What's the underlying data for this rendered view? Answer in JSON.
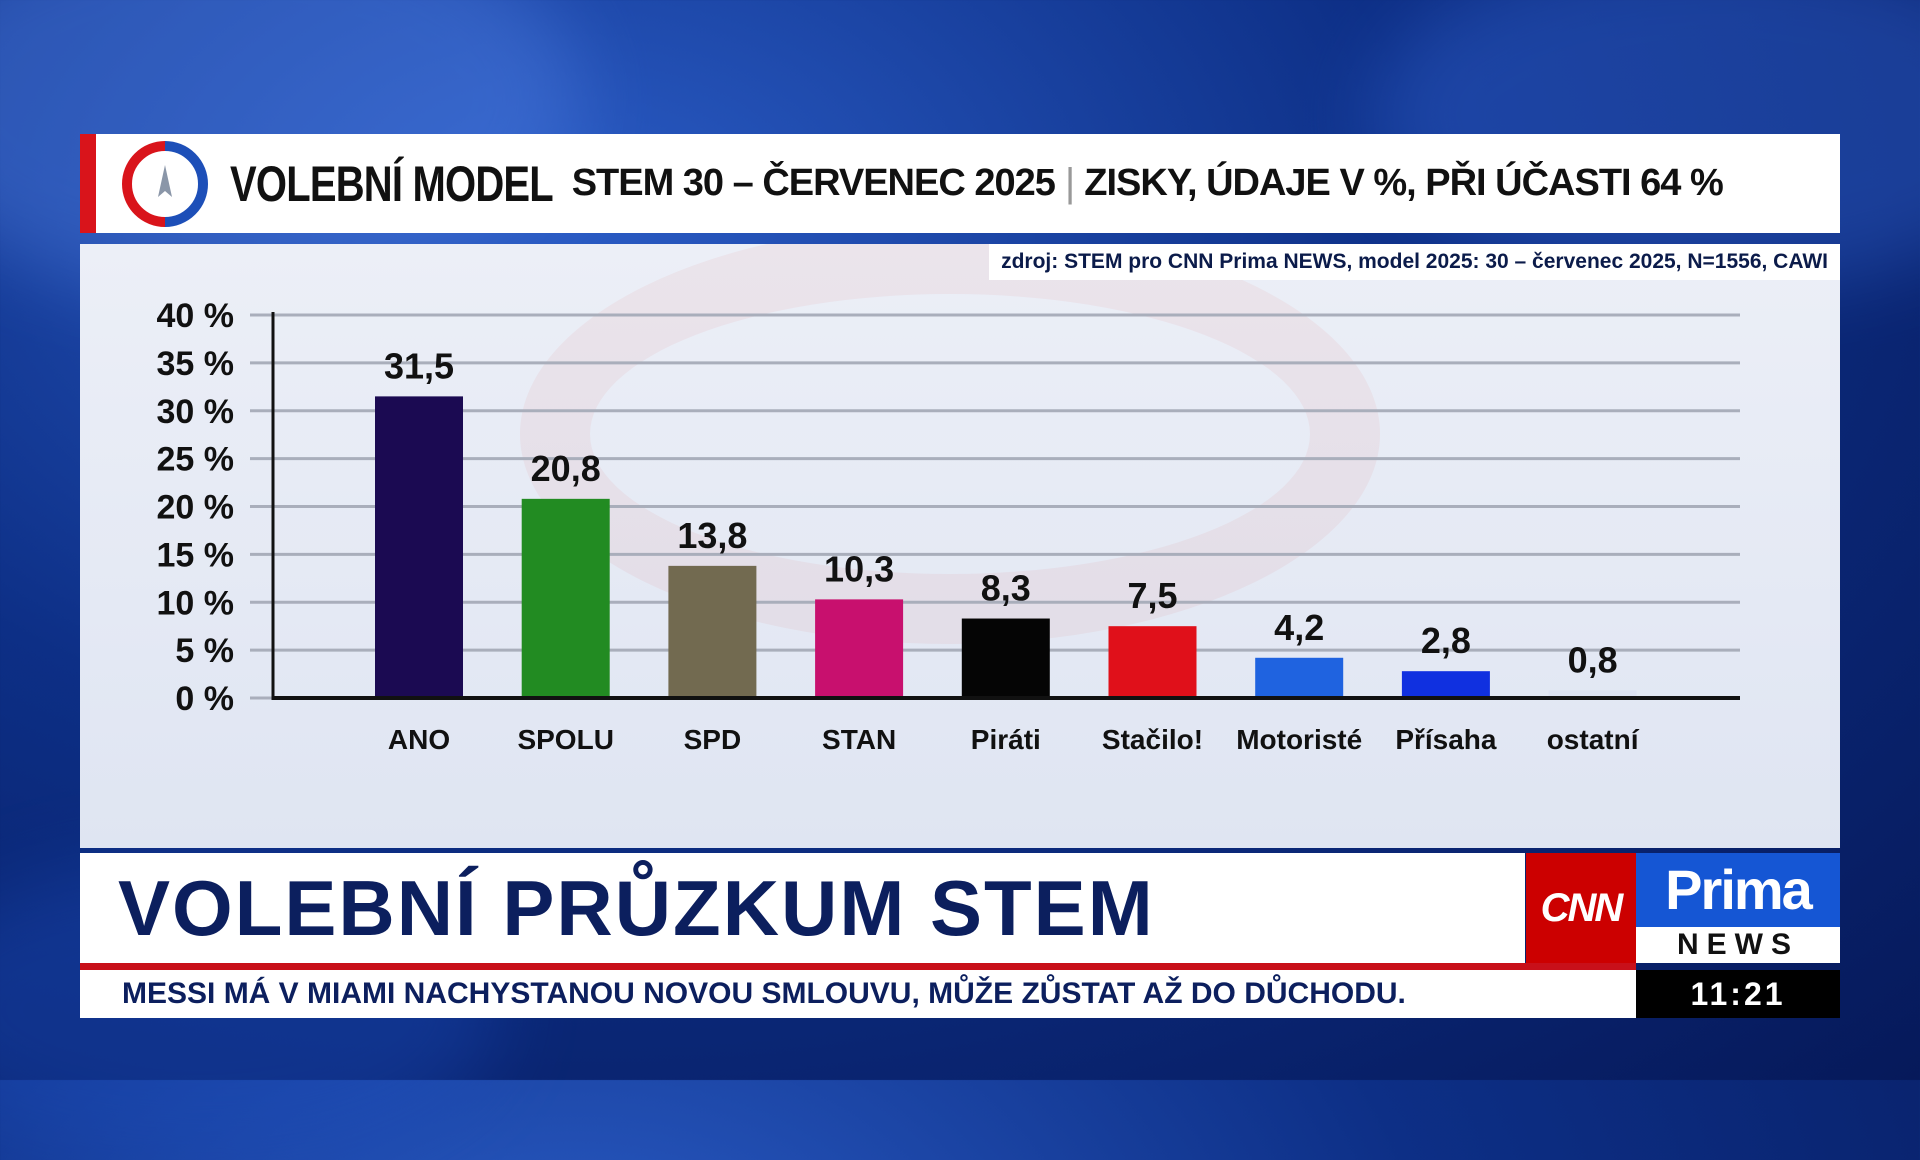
{
  "header": {
    "title_main": "VOLEBNÍ MODEL",
    "title_sub": "STEM 30 – ČERVENEC 2025",
    "separator": "|",
    "title_info": "ZISKY, ÚDAJE V %, PŘI ÚČASTI 64 %",
    "logo_icon": "stem-compass-logo-icon"
  },
  "source": "zdroj: STEM pro CNN Prima NEWS, model 2025: 30 – červenec 2025, N=1556, CAWI",
  "chart_data": {
    "type": "bar",
    "title": "VOLEBNÍ MODEL STEM 30 – ČERVENEC 2025",
    "categories": [
      "ANO",
      "SPOLU",
      "SPD",
      "STAN",
      "Piráti",
      "Stačilo!",
      "Motoristé",
      "Přísaha",
      "ostatní"
    ],
    "values": [
      31.5,
      20.8,
      13.8,
      10.3,
      8.3,
      7.5,
      4.2,
      2.8,
      0.8
    ],
    "value_labels": [
      "31,5",
      "20,8",
      "13,8",
      "10,3",
      "8,3",
      "7,5",
      "4,2",
      "2,8",
      "0,8"
    ],
    "colors": [
      "#1b0a52",
      "#228b22",
      "#726a50",
      "#c8106e",
      "#050505",
      "#e0101a",
      "#1f63e0",
      "#1030e0",
      "#dce2f2"
    ],
    "ylim": [
      0,
      40
    ],
    "yticks": [
      0,
      5,
      10,
      15,
      20,
      25,
      30,
      35,
      40
    ],
    "ytick_labels": [
      "0 %",
      "5 %",
      "10 %",
      "15 %",
      "20 %",
      "25 %",
      "30 %",
      "35 %",
      "40 %"
    ],
    "grid": true,
    "xlabel": "",
    "ylabel": ""
  },
  "lower_third": {
    "title": "VOLEBNÍ PRŮZKUM STEM",
    "brand_cnn": "CNN",
    "brand_prima": "Prima",
    "brand_news": "NEWS",
    "ticker": "MESSI MÁ V MIAMI NACHYSTANOU NOVOU SMLOUVU, MŮŽE ZŮSTAT AŽ DO DŮCHODU.",
    "clock": "11:21"
  }
}
